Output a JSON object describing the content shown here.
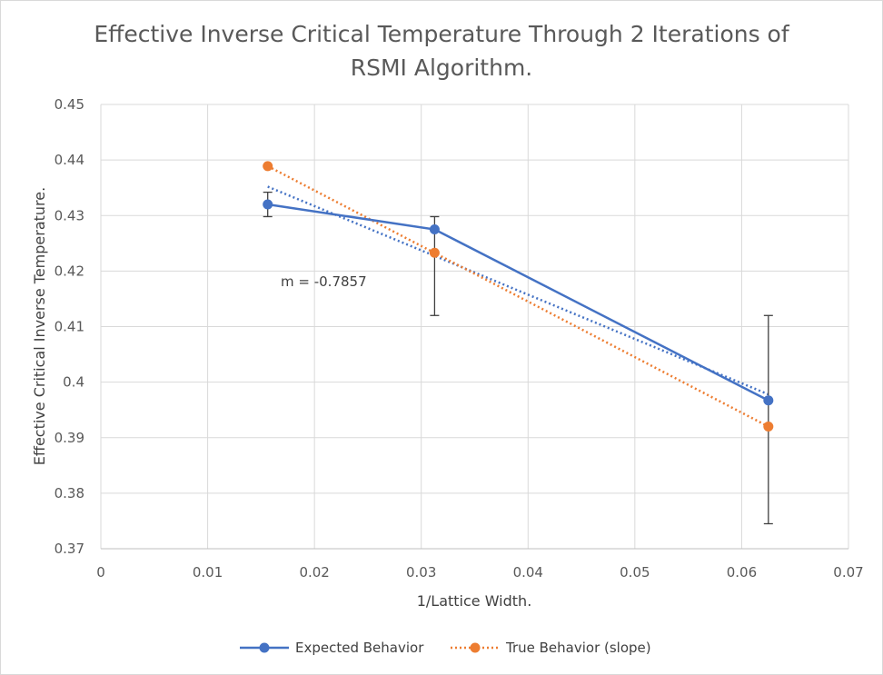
{
  "chart_data": {
    "type": "line",
    "title_lines": [
      "Effective Inverse Critical Temperature Through 2 Iterations of",
      "RSMI Algorithm."
    ],
    "xlabel": "1/Lattice Width.",
    "ylabel": "Effective Critical Inverse Temperature.",
    "xlim": [
      0,
      0.07
    ],
    "ylim": [
      0.37,
      0.45
    ],
    "xticks": [
      0,
      0.01,
      0.02,
      0.03,
      0.04,
      0.05,
      0.06,
      0.07
    ],
    "xtick_labels": [
      "0",
      "0.01",
      "0.02",
      "0.03",
      "0.04",
      "0.05",
      "0.06",
      "0.07"
    ],
    "yticks": [
      0.37,
      0.38,
      0.39,
      0.4,
      0.41,
      0.42,
      0.43,
      0.44,
      0.45
    ],
    "ytick_labels": [
      "0.37",
      "0.38",
      "0.39",
      "0.4",
      "0.41",
      "0.42",
      "0.43",
      "0.44",
      "0.45"
    ],
    "grid": true,
    "legend_position": "bottom",
    "annotation": "m = -0.7857",
    "series": [
      {
        "name": "Expected Behavior",
        "color": "#4472c4",
        "style": "solid",
        "x": [
          0.015625,
          0.03125,
          0.0625
        ],
        "y": [
          0.432,
          0.4275,
          0.3967
        ],
        "error_low": [
          0.4298,
          0.412,
          0.3745
        ],
        "error_high": [
          0.4342,
          0.4298,
          0.412
        ],
        "trendline": {
          "color": "#4472c4",
          "style": "dotted",
          "y_at_xmin": 0.4352,
          "y_at_xmax": 0.3978
        }
      },
      {
        "name": "True Behavior (slope)",
        "color": "#ed7d31",
        "style": "dotted",
        "x": [
          0.015625,
          0.03125,
          0.0625
        ],
        "y": [
          0.4389,
          0.4233,
          0.392
        ],
        "trendline": {
          "color": "#ed7d31",
          "style": "dotted",
          "y_at_xmin": 0.4389,
          "y_at_xmax": 0.392
        }
      }
    ]
  }
}
